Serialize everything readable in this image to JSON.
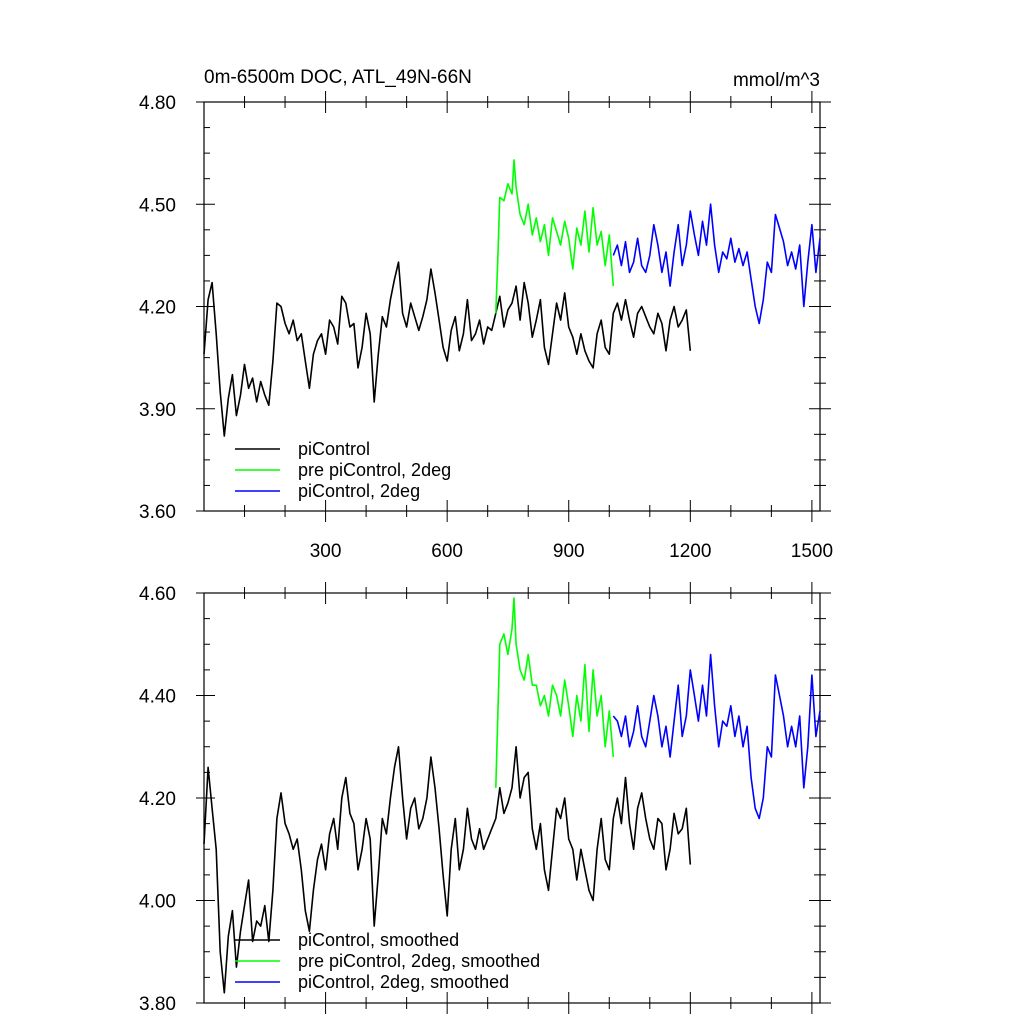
{
  "chart_data": [
    {
      "type": "line",
      "title": "0m-6500m DOC, ATL_49N-66N",
      "units": "mmol/m^3",
      "xlim": [
        0,
        1520
      ],
      "ylim": [
        3.6,
        4.8
      ],
      "xticks": [
        300,
        600,
        900,
        1200,
        1500
      ],
      "yticks": [
        3.6,
        3.9,
        4.2,
        4.5,
        4.8
      ],
      "ytick_labels": [
        "3.60",
        "3.90",
        "4.20",
        "4.50",
        "4.80"
      ],
      "legend_location": "bottom-left",
      "series": [
        {
          "name": "piControl",
          "color": "#000000",
          "x": [
            0,
            10,
            20,
            30,
            40,
            50,
            60,
            70,
            80,
            90,
            100,
            110,
            120,
            130,
            140,
            150,
            160,
            170,
            180,
            190,
            200,
            210,
            220,
            230,
            240,
            250,
            260,
            270,
            280,
            290,
            300,
            310,
            320,
            330,
            340,
            350,
            360,
            370,
            380,
            390,
            400,
            410,
            420,
            430,
            440,
            450,
            460,
            470,
            480,
            490,
            500,
            510,
            520,
            530,
            540,
            550,
            560,
            570,
            580,
            590,
            600,
            610,
            620,
            630,
            640,
            650,
            660,
            670,
            680,
            690,
            700,
            710,
            720,
            730,
            740,
            750,
            760,
            770,
            780,
            790,
            800,
            810,
            820,
            830,
            840,
            850,
            860,
            870,
            880,
            890,
            900,
            910,
            920,
            930,
            940,
            950,
            960,
            970,
            980,
            990,
            1000,
            1010,
            1020,
            1030,
            1040,
            1050,
            1060,
            1070,
            1080,
            1090,
            1100,
            1110,
            1120,
            1130,
            1140,
            1150,
            1160,
            1170,
            1180,
            1190,
            1200
          ],
          "y": [
            4.06,
            4.22,
            4.27,
            4.12,
            3.95,
            3.82,
            3.93,
            4.0,
            3.88,
            3.94,
            4.03,
            3.96,
            3.99,
            3.92,
            3.98,
            3.94,
            3.91,
            4.04,
            4.21,
            4.2,
            4.15,
            4.12,
            4.16,
            4.1,
            4.12,
            4.04,
            3.96,
            4.06,
            4.1,
            4.12,
            4.06,
            4.16,
            4.14,
            4.09,
            4.23,
            4.21,
            4.14,
            4.15,
            4.02,
            4.08,
            4.18,
            4.12,
            3.92,
            4.06,
            4.17,
            4.14,
            4.22,
            4.28,
            4.33,
            4.18,
            4.14,
            4.21,
            4.17,
            4.13,
            4.17,
            4.22,
            4.31,
            4.24,
            4.16,
            4.08,
            4.04,
            4.13,
            4.17,
            4.07,
            4.12,
            4.22,
            4.1,
            4.12,
            4.16,
            4.09,
            4.14,
            4.13,
            4.18,
            4.23,
            4.14,
            4.19,
            4.21,
            4.26,
            4.16,
            4.27,
            4.21,
            4.11,
            4.16,
            4.22,
            4.08,
            4.03,
            4.12,
            4.21,
            4.16,
            4.24,
            4.14,
            4.11,
            4.06,
            4.12,
            4.07,
            4.04,
            4.02,
            4.12,
            4.16,
            4.08,
            4.06,
            4.18,
            4.21,
            4.16,
            4.22,
            4.16,
            4.11,
            4.18,
            4.2,
            4.17,
            4.14,
            4.12,
            4.18,
            4.15,
            4.07,
            4.16,
            4.2,
            4.14,
            4.16,
            4.19,
            4.07
          ]
        },
        {
          "name": "pre piControl, 2deg",
          "color": "#00ff00",
          "x": [
            720,
            725,
            730,
            740,
            750,
            760,
            765,
            770,
            780,
            790,
            800,
            810,
            820,
            830,
            840,
            850,
            860,
            870,
            880,
            890,
            900,
            910,
            920,
            930,
            940,
            950,
            960,
            970,
            980,
            990,
            1000,
            1010
          ],
          "y": [
            4.18,
            4.34,
            4.52,
            4.51,
            4.56,
            4.53,
            4.63,
            4.55,
            4.47,
            4.44,
            4.5,
            4.41,
            4.46,
            4.39,
            4.44,
            4.35,
            4.46,
            4.42,
            4.38,
            4.45,
            4.4,
            4.31,
            4.43,
            4.38,
            4.48,
            4.36,
            4.49,
            4.38,
            4.42,
            4.32,
            4.41,
            4.26
          ]
        },
        {
          "name": "piControl, 2deg",
          "color": "#0000ff",
          "x": [
            1010,
            1020,
            1030,
            1040,
            1050,
            1060,
            1070,
            1080,
            1090,
            1100,
            1110,
            1120,
            1130,
            1140,
            1150,
            1160,
            1170,
            1180,
            1190,
            1200,
            1210,
            1220,
            1230,
            1240,
            1250,
            1260,
            1270,
            1280,
            1290,
            1300,
            1310,
            1320,
            1330,
            1340,
            1350,
            1360,
            1370,
            1380,
            1390,
            1400,
            1410,
            1420,
            1430,
            1440,
            1450,
            1460,
            1470,
            1480,
            1490,
            1500,
            1510,
            1520
          ],
          "y": [
            4.35,
            4.38,
            4.32,
            4.39,
            4.3,
            4.33,
            4.4,
            4.32,
            4.3,
            4.35,
            4.44,
            4.38,
            4.3,
            4.36,
            4.26,
            4.36,
            4.44,
            4.32,
            4.38,
            4.48,
            4.41,
            4.35,
            4.45,
            4.38,
            4.5,
            4.38,
            4.3,
            4.36,
            4.34,
            4.4,
            4.33,
            4.37,
            4.32,
            4.36,
            4.28,
            4.2,
            4.15,
            4.22,
            4.33,
            4.3,
            4.47,
            4.43,
            4.39,
            4.32,
            4.36,
            4.31,
            4.38,
            4.2,
            4.33,
            4.44,
            4.3,
            4.4
          ]
        }
      ]
    },
    {
      "type": "line",
      "xlim": [
        0,
        1520
      ],
      "ylim": [
        3.8,
        4.6
      ],
      "xticks": [
        300,
        600,
        900,
        1200,
        1500
      ],
      "yticks": [
        3.8,
        4.0,
        4.2,
        4.4,
        4.6
      ],
      "ytick_labels": [
        "3.80",
        "4.00",
        "4.20",
        "4.40",
        "4.60"
      ],
      "legend_location": "bottom-left",
      "series": [
        {
          "name": "piControl, smoothed",
          "color": "#000000",
          "x": [
            0,
            10,
            20,
            30,
            40,
            50,
            60,
            70,
            80,
            90,
            100,
            110,
            120,
            130,
            140,
            150,
            160,
            170,
            180,
            190,
            200,
            210,
            220,
            230,
            240,
            250,
            260,
            270,
            280,
            290,
            300,
            310,
            320,
            330,
            340,
            350,
            360,
            370,
            380,
            390,
            400,
            410,
            420,
            430,
            440,
            450,
            460,
            470,
            480,
            490,
            500,
            510,
            520,
            530,
            540,
            550,
            560,
            570,
            580,
            590,
            600,
            610,
            620,
            630,
            640,
            650,
            660,
            670,
            680,
            690,
            700,
            710,
            720,
            730,
            740,
            750,
            760,
            770,
            780,
            790,
            800,
            810,
            820,
            830,
            840,
            850,
            860,
            870,
            880,
            890,
            900,
            910,
            920,
            930,
            940,
            950,
            960,
            970,
            980,
            990,
            1000,
            1010,
            1020,
            1030,
            1040,
            1050,
            1060,
            1070,
            1080,
            1090,
            1100,
            1110,
            1120,
            1130,
            1140,
            1150,
            1160,
            1170,
            1180,
            1190,
            1200
          ],
          "y": [
            4.11,
            4.26,
            4.18,
            4.1,
            3.9,
            3.82,
            3.93,
            3.98,
            3.87,
            3.94,
            3.99,
            4.04,
            3.92,
            3.96,
            3.95,
            3.99,
            3.92,
            4.02,
            4.16,
            4.21,
            4.15,
            4.13,
            4.1,
            4.12,
            4.06,
            3.98,
            3.94,
            4.02,
            4.08,
            4.11,
            4.06,
            4.13,
            4.16,
            4.1,
            4.2,
            4.24,
            4.17,
            4.15,
            4.06,
            4.1,
            4.16,
            4.12,
            3.95,
            4.05,
            4.16,
            4.13,
            4.2,
            4.26,
            4.3,
            4.2,
            4.12,
            4.18,
            4.2,
            4.14,
            4.16,
            4.2,
            4.28,
            4.22,
            4.14,
            4.05,
            3.97,
            4.1,
            4.16,
            4.06,
            4.1,
            4.18,
            4.12,
            4.1,
            4.14,
            4.1,
            4.12,
            4.14,
            4.16,
            4.22,
            4.17,
            4.19,
            4.22,
            4.3,
            4.2,
            4.24,
            4.25,
            4.14,
            4.1,
            4.15,
            4.06,
            4.02,
            4.1,
            4.18,
            4.16,
            4.2,
            4.12,
            4.1,
            4.04,
            4.1,
            4.06,
            4.02,
            4.0,
            4.1,
            4.16,
            4.08,
            4.06,
            4.16,
            4.2,
            4.15,
            4.24,
            4.15,
            4.1,
            4.18,
            4.21,
            4.16,
            4.12,
            4.1,
            4.16,
            4.15,
            4.06,
            4.1,
            4.17,
            4.13,
            4.14,
            4.18,
            4.07
          ]
        },
        {
          "name": "pre piControl, 2deg, smoothed",
          "color": "#00ff00",
          "x": [
            720,
            725,
            730,
            740,
            750,
            760,
            765,
            770,
            780,
            790,
            800,
            810,
            820,
            830,
            840,
            850,
            860,
            870,
            880,
            890,
            900,
            910,
            920,
            930,
            940,
            950,
            960,
            970,
            980,
            990,
            1000,
            1010
          ],
          "y": [
            4.22,
            4.36,
            4.5,
            4.52,
            4.48,
            4.53,
            4.59,
            4.5,
            4.45,
            4.43,
            4.48,
            4.42,
            4.42,
            4.38,
            4.4,
            4.36,
            4.42,
            4.4,
            4.36,
            4.43,
            4.38,
            4.32,
            4.4,
            4.35,
            4.46,
            4.33,
            4.45,
            4.36,
            4.4,
            4.3,
            4.37,
            4.28
          ]
        },
        {
          "name": "piControl, 2deg, smoothed",
          "color": "#0000ff",
          "x": [
            1010,
            1020,
            1030,
            1040,
            1050,
            1060,
            1070,
            1080,
            1090,
            1100,
            1110,
            1120,
            1130,
            1140,
            1150,
            1160,
            1170,
            1180,
            1190,
            1200,
            1210,
            1220,
            1230,
            1240,
            1250,
            1260,
            1270,
            1280,
            1290,
            1300,
            1310,
            1320,
            1330,
            1340,
            1350,
            1360,
            1370,
            1380,
            1390,
            1400,
            1410,
            1420,
            1430,
            1440,
            1450,
            1460,
            1470,
            1480,
            1490,
            1500,
            1510,
            1520
          ],
          "y": [
            4.36,
            4.35,
            4.32,
            4.36,
            4.3,
            4.33,
            4.38,
            4.32,
            4.3,
            4.35,
            4.4,
            4.36,
            4.3,
            4.34,
            4.28,
            4.35,
            4.42,
            4.32,
            4.36,
            4.45,
            4.4,
            4.35,
            4.42,
            4.36,
            4.48,
            4.38,
            4.3,
            4.35,
            4.34,
            4.38,
            4.32,
            4.36,
            4.3,
            4.34,
            4.24,
            4.18,
            4.16,
            4.2,
            4.3,
            4.28,
            4.44,
            4.4,
            4.36,
            4.3,
            4.34,
            4.3,
            4.36,
            4.22,
            4.3,
            4.44,
            4.32,
            4.37
          ]
        }
      ]
    }
  ]
}
